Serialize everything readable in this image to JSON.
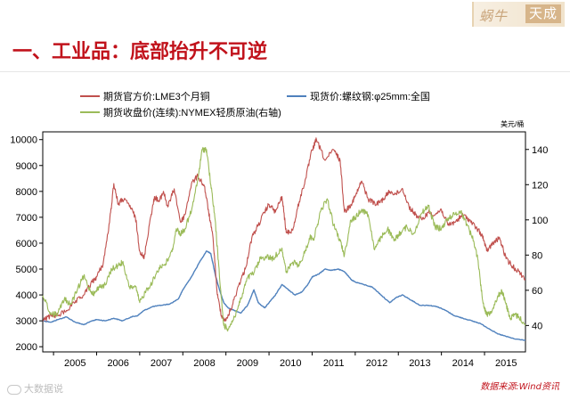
{
  "header": {
    "logo_text": "蜗牛",
    "logo_brand": "天成"
  },
  "page_title": "一、工业品：底部抬升不可逆",
  "footer": {
    "source": "数据来源:Wind资讯",
    "watermark": "大数据说"
  },
  "colors": {
    "copper": "#c0504d",
    "rebar": "#4f81bd",
    "crude": "#9bbb59",
    "title": "#c1121b"
  },
  "chart_data": {
    "type": "line",
    "title": "",
    "x_ticks": [
      "2005",
      "2006",
      "2007",
      "2008",
      "2009",
      "2010",
      "2011",
      "2012",
      "2013",
      "2014",
      "2015"
    ],
    "x_range": [
      2004.75,
      2015.95
    ],
    "y_left": {
      "ticks": [
        2000,
        3000,
        4000,
        5000,
        6000,
        7000,
        8000,
        9000,
        10000
      ],
      "range": [
        1800,
        10300
      ]
    },
    "y_right": {
      "ticks": [
        40,
        60,
        80,
        100,
        120,
        140
      ],
      "range": [
        25,
        150
      ],
      "unit": "美元/桶"
    },
    "legend": [
      {
        "name": "期货官方价:LME3个月铜",
        "series": "copper"
      },
      {
        "name": "现货价:螺纹钢:φ25mm:全国",
        "series": "rebar"
      },
      {
        "name": "期货收盘价(连续):NYMEX轻质原油(右轴)",
        "series": "crude"
      }
    ],
    "series": [
      {
        "key": "copper",
        "axis": "left",
        "points": [
          [
            2004.75,
            3000
          ],
          [
            2004.95,
            3200
          ],
          [
            2005.1,
            3200
          ],
          [
            2005.3,
            3400
          ],
          [
            2005.5,
            3700
          ],
          [
            2005.7,
            4000
          ],
          [
            2005.9,
            4500
          ],
          [
            2006.0,
            4700
          ],
          [
            2006.15,
            5200
          ],
          [
            2006.3,
            6800
          ],
          [
            2006.4,
            8300
          ],
          [
            2006.5,
            7500
          ],
          [
            2006.6,
            7700
          ],
          [
            2006.75,
            7500
          ],
          [
            2006.9,
            7000
          ],
          [
            2007.0,
            5700
          ],
          [
            2007.1,
            5400
          ],
          [
            2007.25,
            7000
          ],
          [
            2007.35,
            7800
          ],
          [
            2007.45,
            7600
          ],
          [
            2007.55,
            8000
          ],
          [
            2007.65,
            7400
          ],
          [
            2007.8,
            8100
          ],
          [
            2007.95,
            6800
          ],
          [
            2008.05,
            7100
          ],
          [
            2008.2,
            8300
          ],
          [
            2008.35,
            8600
          ],
          [
            2008.5,
            8200
          ],
          [
            2008.6,
            7200
          ],
          [
            2008.7,
            6200
          ],
          [
            2008.8,
            4000
          ],
          [
            2008.9,
            3200
          ],
          [
            2009.0,
            3000
          ],
          [
            2009.15,
            3600
          ],
          [
            2009.3,
            4400
          ],
          [
            2009.45,
            5000
          ],
          [
            2009.6,
            6200
          ],
          [
            2009.75,
            6700
          ],
          [
            2009.9,
            7200
          ],
          [
            2010.0,
            7500
          ],
          [
            2010.15,
            7200
          ],
          [
            2010.3,
            7800
          ],
          [
            2010.4,
            6400
          ],
          [
            2010.55,
            6500
          ],
          [
            2010.7,
            7600
          ],
          [
            2010.85,
            8500
          ],
          [
            2011.0,
            9600
          ],
          [
            2011.1,
            10000
          ],
          [
            2011.3,
            9200
          ],
          [
            2011.5,
            9600
          ],
          [
            2011.65,
            9200
          ],
          [
            2011.75,
            7200
          ],
          [
            2011.9,
            7500
          ],
          [
            2012.0,
            7800
          ],
          [
            2012.15,
            8400
          ],
          [
            2012.3,
            7700
          ],
          [
            2012.5,
            7500
          ],
          [
            2012.65,
            7700
          ],
          [
            2012.8,
            8000
          ],
          [
            2012.95,
            7900
          ],
          [
            2013.1,
            8100
          ],
          [
            2013.25,
            7400
          ],
          [
            2013.4,
            7100
          ],
          [
            2013.55,
            6900
          ],
          [
            2013.7,
            7200
          ],
          [
            2013.85,
            7100
          ],
          [
            2014.0,
            7300
          ],
          [
            2014.15,
            6700
          ],
          [
            2014.3,
            6800
          ],
          [
            2014.5,
            7100
          ],
          [
            2014.65,
            6900
          ],
          [
            2014.8,
            6600
          ],
          [
            2014.95,
            6300
          ],
          [
            2015.05,
            5700
          ],
          [
            2015.2,
            6000
          ],
          [
            2015.35,
            6200
          ],
          [
            2015.5,
            5400
          ],
          [
            2015.65,
            5100
          ],
          [
            2015.8,
            4900
          ],
          [
            2015.95,
            4600
          ]
        ]
      },
      {
        "key": "rebar",
        "axis": "left",
        "points": [
          [
            2004.75,
            3000
          ],
          [
            2004.95,
            2950
          ],
          [
            2005.1,
            3050
          ],
          [
            2005.3,
            3150
          ],
          [
            2005.5,
            2950
          ],
          [
            2005.7,
            2850
          ],
          [
            2005.9,
            3000
          ],
          [
            2006.0,
            3050
          ],
          [
            2006.2,
            3000
          ],
          [
            2006.4,
            3100
          ],
          [
            2006.6,
            3000
          ],
          [
            2006.8,
            3150
          ],
          [
            2006.95,
            3200
          ],
          [
            2007.1,
            3400
          ],
          [
            2007.3,
            3550
          ],
          [
            2007.5,
            3600
          ],
          [
            2007.7,
            3650
          ],
          [
            2007.9,
            3850
          ],
          [
            2008.0,
            4200
          ],
          [
            2008.2,
            4700
          ],
          [
            2008.4,
            5300
          ],
          [
            2008.55,
            5700
          ],
          [
            2008.65,
            5600
          ],
          [
            2008.75,
            4800
          ],
          [
            2008.85,
            4200
          ],
          [
            2008.95,
            3700
          ],
          [
            2009.05,
            3500
          ],
          [
            2009.2,
            3400
          ],
          [
            2009.35,
            3300
          ],
          [
            2009.5,
            3600
          ],
          [
            2009.65,
            4200
          ],
          [
            2009.75,
            3700
          ],
          [
            2009.9,
            3500
          ],
          [
            2010.0,
            3700
          ],
          [
            2010.15,
            4000
          ],
          [
            2010.3,
            4400
          ],
          [
            2010.45,
            4200
          ],
          [
            2010.6,
            4000
          ],
          [
            2010.75,
            4100
          ],
          [
            2010.9,
            4400
          ],
          [
            2011.0,
            4700
          ],
          [
            2011.15,
            4800
          ],
          [
            2011.3,
            5000
          ],
          [
            2011.45,
            4950
          ],
          [
            2011.6,
            5000
          ],
          [
            2011.75,
            4900
          ],
          [
            2011.9,
            4600
          ],
          [
            2012.0,
            4500
          ],
          [
            2012.2,
            4400
          ],
          [
            2012.4,
            4300
          ],
          [
            2012.6,
            4000
          ],
          [
            2012.8,
            3700
          ],
          [
            2012.95,
            3900
          ],
          [
            2013.1,
            4000
          ],
          [
            2013.3,
            3800
          ],
          [
            2013.5,
            3600
          ],
          [
            2013.7,
            3600
          ],
          [
            2013.9,
            3550
          ],
          [
            2014.1,
            3400
          ],
          [
            2014.3,
            3200
          ],
          [
            2014.5,
            3100
          ],
          [
            2014.7,
            3000
          ],
          [
            2014.9,
            2900
          ],
          [
            2015.1,
            2700
          ],
          [
            2015.3,
            2500
          ],
          [
            2015.5,
            2400
          ],
          [
            2015.7,
            2300
          ],
          [
            2015.95,
            2250
          ]
        ]
      },
      {
        "key": "crude",
        "axis": "right",
        "points": [
          [
            2004.75,
            57
          ],
          [
            2004.95,
            46
          ],
          [
            2005.1,
            47
          ],
          [
            2005.25,
            55
          ],
          [
            2005.4,
            52
          ],
          [
            2005.55,
            60
          ],
          [
            2005.7,
            68
          ],
          [
            2005.85,
            60
          ],
          [
            2005.95,
            58
          ],
          [
            2006.05,
            62
          ],
          [
            2006.2,
            63
          ],
          [
            2006.35,
            72
          ],
          [
            2006.5,
            74
          ],
          [
            2006.6,
            76
          ],
          [
            2006.75,
            62
          ],
          [
            2006.9,
            62
          ],
          [
            2007.0,
            53
          ],
          [
            2007.15,
            60
          ],
          [
            2007.3,
            65
          ],
          [
            2007.45,
            73
          ],
          [
            2007.6,
            75
          ],
          [
            2007.75,
            82
          ],
          [
            2007.85,
            95
          ],
          [
            2007.95,
            92
          ],
          [
            2008.05,
            95
          ],
          [
            2008.2,
            105
          ],
          [
            2008.35,
            123
          ],
          [
            2008.45,
            140
          ],
          [
            2008.55,
            140
          ],
          [
            2008.65,
            120
          ],
          [
            2008.75,
            100
          ],
          [
            2008.85,
            68
          ],
          [
            2008.95,
            40
          ],
          [
            2009.05,
            38
          ],
          [
            2009.2,
            45
          ],
          [
            2009.35,
            55
          ],
          [
            2009.5,
            67
          ],
          [
            2009.65,
            70
          ],
          [
            2009.8,
            78
          ],
          [
            2009.95,
            79
          ],
          [
            2010.1,
            78
          ],
          [
            2010.3,
            84
          ],
          [
            2010.4,
            70
          ],
          [
            2010.55,
            76
          ],
          [
            2010.7,
            74
          ],
          [
            2010.85,
            83
          ],
          [
            2010.95,
            90
          ],
          [
            2011.05,
            90
          ],
          [
            2011.2,
            105
          ],
          [
            2011.35,
            112
          ],
          [
            2011.5,
            97
          ],
          [
            2011.65,
            88
          ],
          [
            2011.75,
            80
          ],
          [
            2011.9,
            100
          ],
          [
            2012.0,
            101
          ],
          [
            2012.15,
            106
          ],
          [
            2012.3,
            103
          ],
          [
            2012.45,
            83
          ],
          [
            2012.6,
            90
          ],
          [
            2012.75,
            95
          ],
          [
            2012.9,
            88
          ],
          [
            2013.05,
            93
          ],
          [
            2013.2,
            96
          ],
          [
            2013.35,
            92
          ],
          [
            2013.55,
            104
          ],
          [
            2013.7,
            108
          ],
          [
            2013.85,
            96
          ],
          [
            2014.0,
            95
          ],
          [
            2014.15,
            101
          ],
          [
            2014.3,
            103
          ],
          [
            2014.45,
            105
          ],
          [
            2014.6,
            97
          ],
          [
            2014.75,
            88
          ],
          [
            2014.85,
            77
          ],
          [
            2014.95,
            55
          ],
          [
            2015.05,
            46
          ],
          [
            2015.15,
            48
          ],
          [
            2015.3,
            56
          ],
          [
            2015.4,
            60
          ],
          [
            2015.5,
            52
          ],
          [
            2015.6,
            44
          ],
          [
            2015.7,
            46
          ],
          [
            2015.8,
            45
          ],
          [
            2015.95,
            40
          ]
        ]
      }
    ]
  }
}
